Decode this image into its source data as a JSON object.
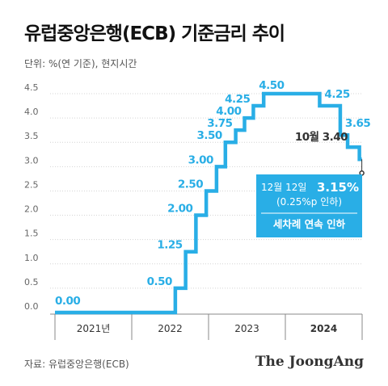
{
  "title": "유럽중앙은행(ECB) 기준금리 추이",
  "unit": "단위: %(연 기준), 현지시간",
  "source": "자료: 유럽중앙은행(ECB)",
  "brand": "The JoongAng",
  "colors": {
    "line": "#29aee6",
    "label": "#29aee6",
    "box": "#29aee6",
    "grid": "#d4d4d4",
    "axis": "#888888"
  },
  "chart_data": {
    "type": "line",
    "step": true,
    "ylim": [
      0,
      4.5
    ],
    "yticks": [
      "0.0",
      "0.5",
      "1.0",
      "1.5",
      "2.0",
      "2.5",
      "3.0",
      "3.5",
      "4.0",
      "4.5"
    ],
    "xlim": [
      "2021-01-01",
      "2024-12-31"
    ],
    "year_labels": [
      "2021년",
      "2022",
      "2023",
      "2024"
    ],
    "grid": true,
    "series": [
      {
        "x": [
          "2021-01-01",
          "2022-07-27",
          "2022-09-14",
          "2022-11-02",
          "2022-12-21",
          "2023-02-08",
          "2023-03-22",
          "2023-05-10",
          "2023-06-21",
          "2023-08-02",
          "2023-09-20",
          "2024-06-12",
          "2024-09-18",
          "2024-10-23",
          "2024-12-18"
        ],
        "y": [
          0.0,
          0.5,
          1.25,
          2.0,
          2.5,
          3.0,
          3.5,
          3.75,
          4.0,
          4.25,
          4.5,
          4.25,
          3.65,
          3.4,
          3.15
        ]
      }
    ],
    "value_labels": [
      "0.00",
      "0.50",
      "1.25",
      "2.00",
      "2.50",
      "3.00",
      "3.50",
      "3.75",
      "4.00",
      "4.25",
      "4.50",
      "4.25",
      "3.65",
      "3.40"
    ],
    "value_label_prefix": {
      "13": "10월 "
    },
    "callout": {
      "date_line": "12월 12일",
      "value": "3.15%",
      "change": "(0.25%p 인하)",
      "note": "세차례 연속 인하"
    }
  }
}
